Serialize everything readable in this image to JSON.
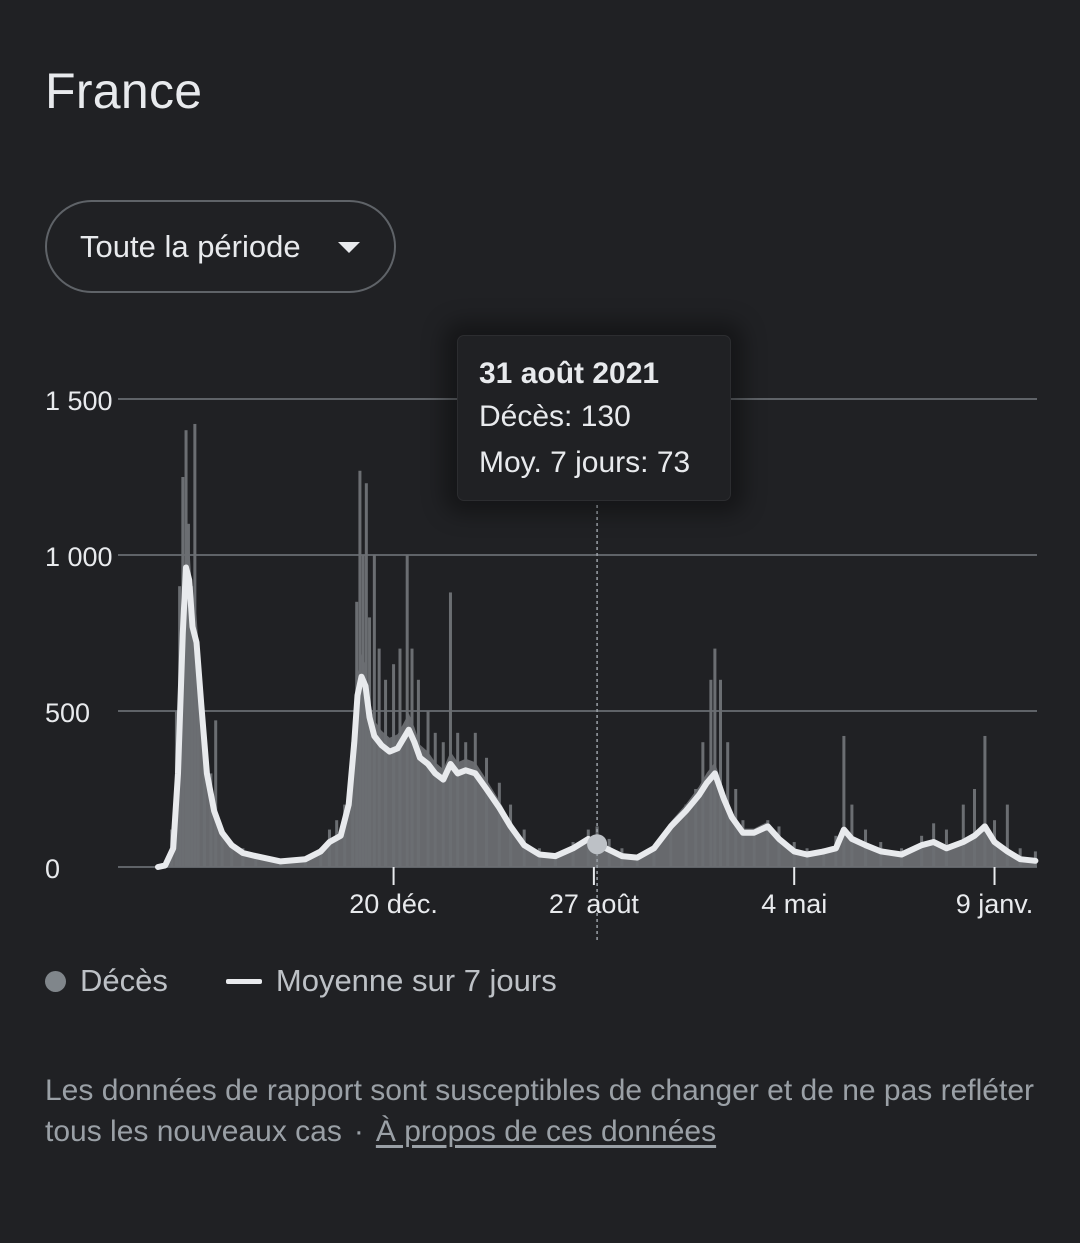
{
  "page": {
    "title": "France"
  },
  "period_selector": {
    "label": "Toute la période"
  },
  "tooltip": {
    "date": "31 août 2021",
    "deaths_line": "Décès: 130",
    "avg_line": "Moy. 7 jours: 73"
  },
  "legend": {
    "deaths": "Décès",
    "average": "Moyenne sur 7 jours"
  },
  "footer": {
    "note": "Les données de rapport sont susceptibles de changer et de ne pas refléter tous les nouveaux cas",
    "separator": "·",
    "link": "À propos de ces données"
  },
  "colors": {
    "background": "#202124",
    "bars": "#6b6e72",
    "line": "#e8eaed",
    "grid": "#5f6368",
    "text": "#e8eaed",
    "muted": "#9aa0a6"
  },
  "chart_data": {
    "type": "bar",
    "title": "",
    "xlabel": "",
    "ylabel": "",
    "ylim": [
      0,
      1500
    ],
    "y_ticks": [
      {
        "value": 0,
        "label": "0"
      },
      {
        "value": 500,
        "label": "500"
      },
      {
        "value": 1000,
        "label": "1 000"
      },
      {
        "value": 1500,
        "label": "1 500"
      }
    ],
    "x_ticks": [
      {
        "date": "2020-12-20",
        "label": "20 déc."
      },
      {
        "date": "2021-08-27",
        "label": "27 août"
      },
      {
        "date": "2022-05-04",
        "label": "4 mai"
      },
      {
        "date": "2023-01-09",
        "label": "9 janv."
      }
    ],
    "x_range": [
      "2020-03-01",
      "2023-03-03"
    ],
    "highlight": {
      "date": "2021-08-31",
      "deaths": 130,
      "avg7": 73
    },
    "grid": true,
    "series": [
      {
        "name": "Décès",
        "kind": "bars",
        "points": [
          [
            "2020-03-01",
            0
          ],
          [
            "2020-03-10",
            10
          ],
          [
            "2020-03-18",
            120
          ],
          [
            "2020-03-24",
            500
          ],
          [
            "2020-03-28",
            900
          ],
          [
            "2020-04-01",
            1250
          ],
          [
            "2020-04-05",
            1400
          ],
          [
            "2020-04-08",
            1100
          ],
          [
            "2020-04-12",
            900
          ],
          [
            "2020-04-16",
            1420
          ],
          [
            "2020-04-20",
            700
          ],
          [
            "2020-04-28",
            450
          ],
          [
            "2020-05-06",
            300
          ],
          [
            "2020-05-12",
            470
          ],
          [
            "2020-05-20",
            120
          ],
          [
            "2020-06-01",
            80
          ],
          [
            "2020-06-15",
            60
          ],
          [
            "2020-07-01",
            40
          ],
          [
            "2020-08-01",
            20
          ],
          [
            "2020-09-01",
            30
          ],
          [
            "2020-09-20",
            60
          ],
          [
            "2020-10-01",
            120
          ],
          [
            "2020-10-10",
            150
          ],
          [
            "2020-10-20",
            200
          ],
          [
            "2020-10-30",
            400
          ],
          [
            "2020-11-04",
            850
          ],
          [
            "2020-11-08",
            1270
          ],
          [
            "2020-11-12",
            1000
          ],
          [
            "2020-11-16",
            1230
          ],
          [
            "2020-11-20",
            800
          ],
          [
            "2020-11-26",
            1000
          ],
          [
            "2020-12-02",
            700
          ],
          [
            "2020-12-10",
            600
          ],
          [
            "2020-12-20",
            650
          ],
          [
            "2020-12-28",
            700
          ],
          [
            "2021-01-06",
            1000
          ],
          [
            "2021-01-12",
            700
          ],
          [
            "2021-01-20",
            600
          ],
          [
            "2021-02-01",
            500
          ],
          [
            "2021-02-10",
            430
          ],
          [
            "2021-02-20",
            400
          ],
          [
            "2021-03-01",
            880
          ],
          [
            "2021-03-10",
            430
          ],
          [
            "2021-03-20",
            400
          ],
          [
            "2021-04-01",
            430
          ],
          [
            "2021-04-15",
            350
          ],
          [
            "2021-05-01",
            270
          ],
          [
            "2021-05-15",
            200
          ],
          [
            "2021-06-01",
            120
          ],
          [
            "2021-06-20",
            60
          ],
          [
            "2021-07-10",
            40
          ],
          [
            "2021-08-01",
            80
          ],
          [
            "2021-08-20",
            120
          ],
          [
            "2021-08-31",
            130
          ],
          [
            "2021-09-15",
            90
          ],
          [
            "2021-10-01",
            60
          ],
          [
            "2021-10-20",
            40
          ],
          [
            "2021-11-10",
            60
          ],
          [
            "2021-12-01",
            120
          ],
          [
            "2021-12-20",
            200
          ],
          [
            "2022-01-01",
            250
          ],
          [
            "2022-01-10",
            400
          ],
          [
            "2022-01-20",
            600
          ],
          [
            "2022-01-25",
            700
          ],
          [
            "2022-02-01",
            600
          ],
          [
            "2022-02-10",
            400
          ],
          [
            "2022-02-20",
            250
          ],
          [
            "2022-03-01",
            150
          ],
          [
            "2022-03-15",
            120
          ],
          [
            "2022-04-01",
            150
          ],
          [
            "2022-04-15",
            130
          ],
          [
            "2022-05-04",
            80
          ],
          [
            "2022-05-20",
            60
          ],
          [
            "2022-06-10",
            60
          ],
          [
            "2022-06-25",
            100
          ],
          [
            "2022-07-05",
            420
          ],
          [
            "2022-07-15",
            200
          ],
          [
            "2022-08-01",
            120
          ],
          [
            "2022-08-20",
            80
          ],
          [
            "2022-09-15",
            60
          ],
          [
            "2022-10-10",
            100
          ],
          [
            "2022-10-25",
            140
          ],
          [
            "2022-11-10",
            120
          ],
          [
            "2022-12-01",
            200
          ],
          [
            "2022-12-15",
            250
          ],
          [
            "2022-12-28",
            420
          ],
          [
            "2023-01-09",
            150
          ],
          [
            "2023-01-25",
            200
          ],
          [
            "2023-02-10",
            60
          ],
          [
            "2023-03-01",
            50
          ]
        ]
      },
      {
        "name": "Moyenne sur 7 jours",
        "kind": "line",
        "points": [
          [
            "2020-03-01",
            0
          ],
          [
            "2020-03-10",
            5
          ],
          [
            "2020-03-20",
            60
          ],
          [
            "2020-03-26",
            300
          ],
          [
            "2020-04-01",
            750
          ],
          [
            "2020-04-05",
            960
          ],
          [
            "2020-04-09",
            920
          ],
          [
            "2020-04-13",
            770
          ],
          [
            "2020-04-18",
            720
          ],
          [
            "2020-04-24",
            520
          ],
          [
            "2020-05-01",
            300
          ],
          [
            "2020-05-10",
            180
          ],
          [
            "2020-05-20",
            110
          ],
          [
            "2020-06-01",
            70
          ],
          [
            "2020-06-15",
            45
          ],
          [
            "2020-07-01",
            35
          ],
          [
            "2020-08-01",
            18
          ],
          [
            "2020-09-01",
            25
          ],
          [
            "2020-09-20",
            50
          ],
          [
            "2020-10-01",
            80
          ],
          [
            "2020-10-15",
            100
          ],
          [
            "2020-10-25",
            200
          ],
          [
            "2020-11-01",
            400
          ],
          [
            "2020-11-05",
            550
          ],
          [
            "2020-11-10",
            610
          ],
          [
            "2020-11-15",
            580
          ],
          [
            "2020-11-20",
            480
          ],
          [
            "2020-11-26",
            420
          ],
          [
            "2020-12-05",
            390
          ],
          [
            "2020-12-15",
            370
          ],
          [
            "2020-12-25",
            380
          ],
          [
            "2021-01-01",
            410
          ],
          [
            "2021-01-08",
            440
          ],
          [
            "2021-01-15",
            400
          ],
          [
            "2021-01-22",
            350
          ],
          [
            "2021-02-01",
            330
          ],
          [
            "2021-02-10",
            300
          ],
          [
            "2021-02-20",
            280
          ],
          [
            "2021-03-01",
            330
          ],
          [
            "2021-03-10",
            300
          ],
          [
            "2021-03-20",
            310
          ],
          [
            "2021-04-01",
            300
          ],
          [
            "2021-04-15",
            250
          ],
          [
            "2021-05-01",
            190
          ],
          [
            "2021-05-15",
            130
          ],
          [
            "2021-06-01",
            70
          ],
          [
            "2021-06-20",
            40
          ],
          [
            "2021-07-10",
            35
          ],
          [
            "2021-08-01",
            60
          ],
          [
            "2021-08-20",
            90
          ],
          [
            "2021-08-31",
            73
          ],
          [
            "2021-09-15",
            55
          ],
          [
            "2021-10-01",
            35
          ],
          [
            "2021-10-20",
            30
          ],
          [
            "2021-11-10",
            60
          ],
          [
            "2021-12-01",
            130
          ],
          [
            "2021-12-20",
            180
          ],
          [
            "2022-01-05",
            230
          ],
          [
            "2022-01-15",
            270
          ],
          [
            "2022-01-25",
            300
          ],
          [
            "2022-02-05",
            220
          ],
          [
            "2022-02-15",
            160
          ],
          [
            "2022-03-01",
            110
          ],
          [
            "2022-03-15",
            110
          ],
          [
            "2022-04-01",
            130
          ],
          [
            "2022-04-15",
            90
          ],
          [
            "2022-05-04",
            50
          ],
          [
            "2022-05-20",
            40
          ],
          [
            "2022-06-10",
            50
          ],
          [
            "2022-06-25",
            60
          ],
          [
            "2022-07-05",
            120
          ],
          [
            "2022-07-15",
            90
          ],
          [
            "2022-08-01",
            70
          ],
          [
            "2022-08-20",
            50
          ],
          [
            "2022-09-15",
            40
          ],
          [
            "2022-10-10",
            70
          ],
          [
            "2022-10-25",
            80
          ],
          [
            "2022-11-10",
            60
          ],
          [
            "2022-12-01",
            80
          ],
          [
            "2022-12-15",
            100
          ],
          [
            "2022-12-28",
            130
          ],
          [
            "2023-01-09",
            80
          ],
          [
            "2023-01-25",
            50
          ],
          [
            "2023-02-10",
            25
          ],
          [
            "2023-03-01",
            20
          ]
        ]
      }
    ]
  }
}
